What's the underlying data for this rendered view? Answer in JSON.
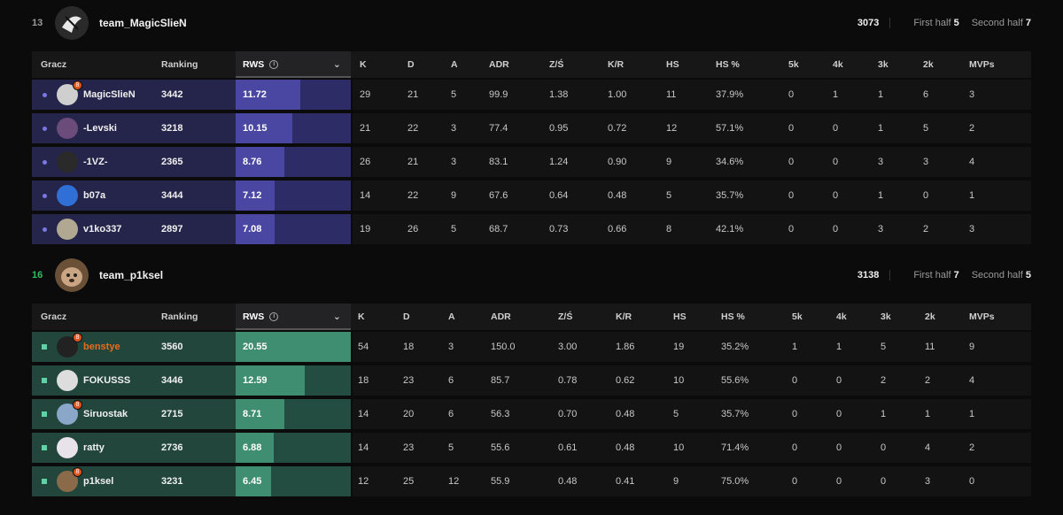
{
  "columns": {
    "gracz": "Gracz",
    "ranking": "Ranking",
    "rws": "RWS",
    "info": "i",
    "sort": "⌄",
    "k": "K",
    "d": "D",
    "a": "A",
    "adr": "ADR",
    "zs": "Z/Ś",
    "kr": "K/R",
    "hs": "HS",
    "hsp": "HS %",
    "k5": "5k",
    "k4": "4k",
    "k3": "3k",
    "k2": "2k",
    "mvps": "MVPs"
  },
  "teams": [
    {
      "score": "13",
      "name": "team_MagicSlieN",
      "elo": "3073",
      "first_half_label": "First half",
      "first_half": "5",
      "second_half_label": "Second half",
      "second_half": "7",
      "result": "loss",
      "colors": {
        "row": "#25244b",
        "rws_bg": "#2d2c66",
        "rws_fill": "#4a47a3",
        "marker": "#7b77e6"
      },
      "players": [
        {
          "name": "MagicSlieN",
          "ranking": "3442",
          "rws": "11.72",
          "rws_frac": 0.56,
          "k": "29",
          "d": "21",
          "a": "5",
          "adr": "99.9",
          "zs": "1.38",
          "kr": "1.00",
          "hs": "11",
          "hsp": "37.9%",
          "k5": "0",
          "k4": "1",
          "k3": "1",
          "k2": "6",
          "mvps": "3",
          "highlight": false,
          "avatar": "#cfcfcf",
          "level": "8"
        },
        {
          "name": "-Levski",
          "ranking": "3218",
          "rws": "10.15",
          "rws_frac": 0.49,
          "k": "21",
          "d": "22",
          "a": "3",
          "adr": "77.4",
          "zs": "0.95",
          "kr": "0.72",
          "hs": "12",
          "hsp": "57.1%",
          "k5": "0",
          "k4": "0",
          "k3": "1",
          "k2": "5",
          "mvps": "2",
          "highlight": false,
          "avatar": "#6a4b7a",
          "level": ""
        },
        {
          "name": "-1VZ-",
          "ranking": "2365",
          "rws": "8.76",
          "rws_frac": 0.42,
          "k": "26",
          "d": "21",
          "a": "3",
          "adr": "83.1",
          "zs": "1.24",
          "kr": "0.90",
          "hs": "9",
          "hsp": "34.6%",
          "k5": "0",
          "k4": "0",
          "k3": "3",
          "k2": "3",
          "mvps": "4",
          "highlight": false,
          "avatar": "#2a2a2a",
          "level": ""
        },
        {
          "name": "b07a",
          "ranking": "3444",
          "rws": "7.12",
          "rws_frac": 0.34,
          "k": "14",
          "d": "22",
          "a": "9",
          "adr": "67.6",
          "zs": "0.64",
          "kr": "0.48",
          "hs": "5",
          "hsp": "35.7%",
          "k5": "0",
          "k4": "0",
          "k3": "1",
          "k2": "0",
          "mvps": "1",
          "highlight": false,
          "avatar": "#2f6fd6",
          "level": ""
        },
        {
          "name": "v1ko337",
          "ranking": "2897",
          "rws": "7.08",
          "rws_frac": 0.34,
          "k": "19",
          "d": "26",
          "a": "5",
          "adr": "68.7",
          "zs": "0.73",
          "kr": "0.66",
          "hs": "8",
          "hsp": "42.1%",
          "k5": "0",
          "k4": "0",
          "k3": "3",
          "k2": "2",
          "mvps": "3",
          "highlight": false,
          "avatar": "#b0a890",
          "level": ""
        }
      ]
    },
    {
      "score": "16",
      "name": "team_p1ksel",
      "elo": "3138",
      "first_half_label": "First half",
      "first_half": "7",
      "second_half_label": "Second half",
      "second_half": "5",
      "result": "win",
      "colors": {
        "row": "#22463b",
        "rws_bg": "#234d40",
        "rws_fill": "#3f8e72",
        "marker": "#5fd3a6"
      },
      "players": [
        {
          "name": "benstye",
          "ranking": "3560",
          "rws": "20.55",
          "rws_frac": 1.0,
          "k": "54",
          "d": "18",
          "a": "3",
          "adr": "150.0",
          "zs": "3.00",
          "kr": "1.86",
          "hs": "19",
          "hsp": "35.2%",
          "k5": "1",
          "k4": "1",
          "k3": "5",
          "k2": "11",
          "mvps": "9",
          "highlight": true,
          "avatar": "#222222",
          "level": "8"
        },
        {
          "name": "FOKUSSS",
          "ranking": "3446",
          "rws": "12.59",
          "rws_frac": 0.6,
          "k": "18",
          "d": "23",
          "a": "6",
          "adr": "85.7",
          "zs": "0.78",
          "kr": "0.62",
          "hs": "10",
          "hsp": "55.6%",
          "k5": "0",
          "k4": "0",
          "k3": "2",
          "k2": "2",
          "mvps": "4",
          "highlight": false,
          "avatar": "#dddddd",
          "level": ""
        },
        {
          "name": "Siruostak",
          "ranking": "2715",
          "rws": "8.71",
          "rws_frac": 0.42,
          "k": "14",
          "d": "20",
          "a": "6",
          "adr": "56.3",
          "zs": "0.70",
          "kr": "0.48",
          "hs": "5",
          "hsp": "35.7%",
          "k5": "0",
          "k4": "0",
          "k3": "1",
          "k2": "1",
          "mvps": "1",
          "highlight": false,
          "avatar": "#8aa6c8",
          "level": "8"
        },
        {
          "name": "ratty",
          "ranking": "2736",
          "rws": "6.88",
          "rws_frac": 0.33,
          "k": "14",
          "d": "23",
          "a": "5",
          "adr": "55.6",
          "zs": "0.61",
          "kr": "0.48",
          "hs": "10",
          "hsp": "71.4%",
          "k5": "0",
          "k4": "0",
          "k3": "0",
          "k2": "4",
          "mvps": "2",
          "highlight": false,
          "avatar": "#e8e2ea",
          "level": ""
        },
        {
          "name": "p1ksel",
          "ranking": "3231",
          "rws": "6.45",
          "rws_frac": 0.31,
          "k": "12",
          "d": "25",
          "a": "12",
          "adr": "55.9",
          "zs": "0.48",
          "kr": "0.41",
          "hs": "9",
          "hsp": "75.0%",
          "k5": "0",
          "k4": "0",
          "k3": "0",
          "k2": "3",
          "mvps": "0",
          "highlight": false,
          "avatar": "#8b6a4a",
          "level": "8"
        }
      ]
    }
  ]
}
